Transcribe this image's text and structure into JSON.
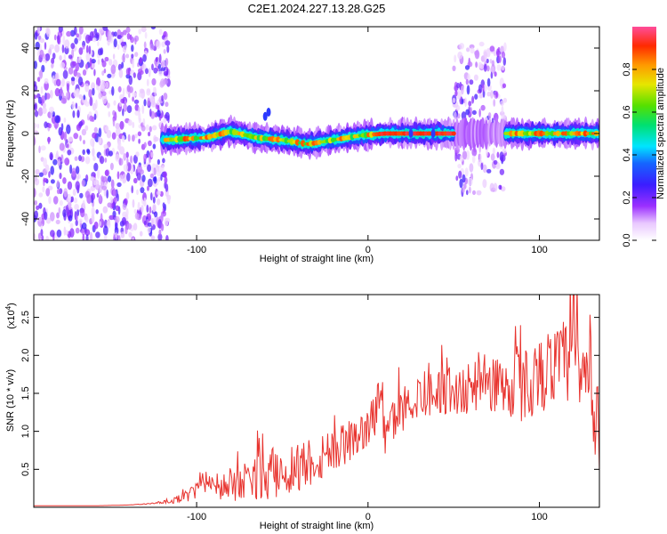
{
  "title": "C2E1.2024.227.13.28.G25",
  "chart_data": [
    {
      "type": "heatmap",
      "xlabel": "Height of straight line (km)",
      "ylabel": "Frequency (Hz)",
      "xlim": [
        -195,
        135
      ],
      "ylim": [
        -50,
        50
      ],
      "xticks": [
        -100,
        0,
        100
      ],
      "yticks": [
        -40,
        -20,
        0,
        20,
        40
      ],
      "colorbar": {
        "label": "Normalized spectral amplitude",
        "range": [
          0.0,
          1.0
        ],
        "ticks": [
          "0.0",
          "0.2",
          "0.4",
          "0.6",
          "0.8"
        ],
        "tick_values": [
          0.0,
          0.2,
          0.4,
          0.6,
          0.8
        ]
      },
      "ridge_center_hz": [
        {
          "x": -118,
          "y": -3
        },
        {
          "x": -95,
          "y": -2
        },
        {
          "x": -80,
          "y": 1
        },
        {
          "x": -65,
          "y": -2
        },
        {
          "x": -50,
          "y": -3
        },
        {
          "x": -35,
          "y": -5
        },
        {
          "x": -20,
          "y": -3
        },
        {
          "x": -5,
          "y": -1
        },
        {
          "x": 10,
          "y": 0
        },
        {
          "x": 50,
          "y": 0
        },
        {
          "x": 80,
          "y": 0
        },
        {
          "x": 133,
          "y": 0
        }
      ],
      "noise_regions_km": [
        [
          -195,
          -116
        ],
        [
          50,
          80
        ]
      ]
    },
    {
      "type": "line",
      "xlabel": "Height of straight line (km)",
      "ylabel": "SNR (10 * v/v)",
      "y_multiplier": "(x10",
      "y_multiplier_exp": "4",
      "y_multiplier_close": ")",
      "xlim": [
        -195,
        135
      ],
      "ylim": [
        0,
        2.8
      ],
      "xticks": [
        -100,
        0,
        100
      ],
      "yticks": [
        0.5,
        1.0,
        1.5,
        2.0,
        2.5
      ],
      "ytick_labels": [
        "0.5",
        "1.0",
        "1.5",
        "2.0",
        "2.5"
      ],
      "color": "#e8342f",
      "series": [
        {
          "x": [
            -195,
            -180,
            -160,
            -140,
            -125,
            -115,
            -105,
            -98,
            -92,
            -85,
            -75,
            -65,
            -55,
            -45,
            -35,
            -25,
            -15,
            -5,
            0,
            5,
            8,
            10,
            12,
            15,
            20,
            25,
            30,
            40,
            50,
            60,
            70,
            80,
            90,
            100,
            110,
            115,
            120,
            125,
            130,
            133
          ],
          "y": [
            0.02,
            0.02,
            0.02,
            0.03,
            0.05,
            0.08,
            0.15,
            0.25,
            0.35,
            0.25,
            0.28,
            0.38,
            0.45,
            0.5,
            0.6,
            0.7,
            0.82,
            0.95,
            1.05,
            1.25,
            1.6,
            0.85,
            1.0,
            1.15,
            1.3,
            1.4,
            1.45,
            1.55,
            1.5,
            1.55,
            1.65,
            1.6,
            1.6,
            1.75,
            1.85,
            1.9,
            2.0,
            1.7,
            1.5,
            1.0
          ],
          "noise": [
            0,
            0,
            0,
            0,
            0.01,
            0.03,
            0.08,
            0.15,
            0.1,
            0.2,
            0.25,
            0.3,
            0.35,
            0.35,
            0.35,
            0.35,
            0.3,
            0.25,
            0.25,
            0.3,
            0.6,
            0.3,
            0.3,
            0.3,
            0.3,
            0.3,
            0.3,
            0.3,
            0.3,
            0.35,
            0.4,
            0.45,
            0.5,
            0.5,
            0.55,
            0.6,
            0.65,
            0.7,
            0.7,
            0.6
          ]
        }
      ]
    }
  ]
}
